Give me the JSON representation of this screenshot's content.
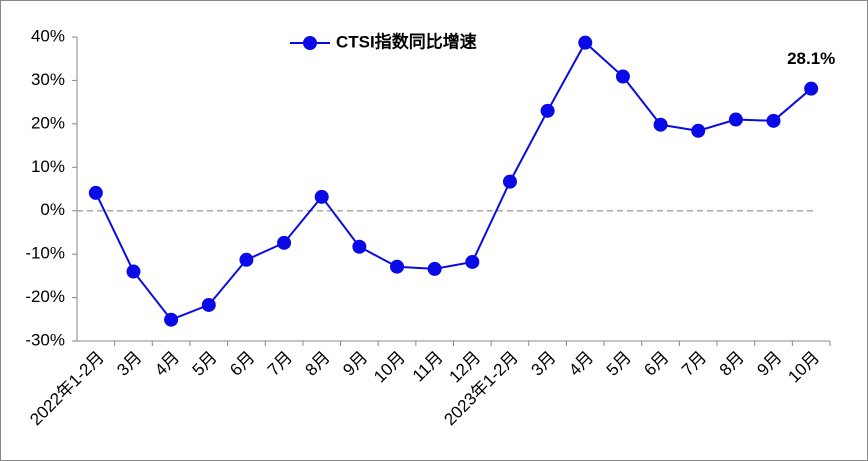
{
  "chart_data": {
    "type": "line",
    "categories": [
      "2022年1-2月",
      "3月",
      "4月",
      "5月",
      "6月",
      "7月",
      "8月",
      "9月",
      "10月",
      "11月",
      "12月",
      "2023年1-2月",
      "3月",
      "4月",
      "5月",
      "6月",
      "7月",
      "8月",
      "9月",
      "10月"
    ],
    "series": [
      {
        "name": "CTSI指数同比增速",
        "color": "#0a0ae6",
        "values": [
          4.1,
          -14.0,
          -25.1,
          -21.7,
          -11.3,
          -7.4,
          3.2,
          -8.3,
          -12.9,
          -13.4,
          -11.8,
          6.7,
          23.0,
          38.7,
          30.9,
          19.8,
          18.4,
          21.0,
          20.7,
          28.1
        ],
        "value_labels": [
          null,
          null,
          null,
          null,
          null,
          null,
          null,
          null,
          null,
          null,
          null,
          null,
          null,
          null,
          null,
          null,
          null,
          null,
          null,
          "28.1%"
        ]
      }
    ],
    "ylim": [
      -30,
      40
    ],
    "yticks": [
      {
        "value": -30,
        "label": "-30%"
      },
      {
        "value": -20,
        "label": "-20%"
      },
      {
        "value": -10,
        "label": "-10%"
      },
      {
        "value": 0,
        "label": "0%"
      },
      {
        "value": 10,
        "label": "10%"
      },
      {
        "value": 20,
        "label": "20%"
      },
      {
        "value": 30,
        "label": "30%"
      },
      {
        "value": 40,
        "label": "40%"
      }
    ],
    "zero_line": true,
    "legend": "top"
  }
}
